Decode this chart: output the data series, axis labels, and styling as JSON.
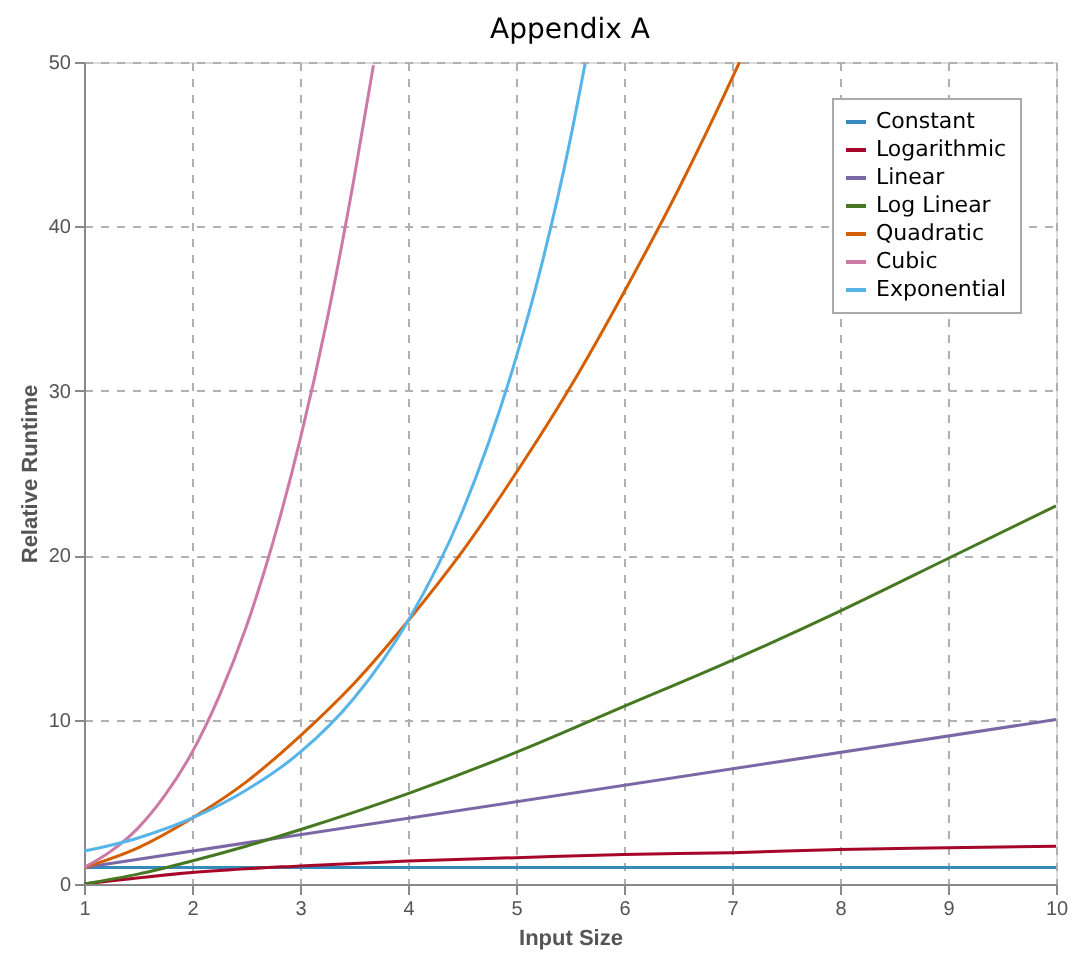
{
  "chart_data": {
    "type": "line",
    "title": "Appendix A",
    "xlabel": "Input Size",
    "ylabel": "Relative Runtime",
    "xlim": [
      1,
      10
    ],
    "ylim": [
      0,
      50
    ],
    "xticks": [
      1,
      2,
      3,
      4,
      5,
      6,
      7,
      8,
      9,
      10
    ],
    "yticks": [
      0,
      10,
      20,
      30,
      40,
      50
    ],
    "grid": true,
    "legend": "top right",
    "line_style": "solid",
    "marker": "none",
    "series": [
      {
        "name": "Constant",
        "color": "#348abd",
        "x": [
          1,
          10
        ],
        "values": [
          1,
          1
        ]
      },
      {
        "name": "Logarithmic",
        "color": "#a60628",
        "x": [
          1,
          2,
          3,
          4,
          5,
          6,
          7,
          8,
          9,
          10
        ],
        "values": [
          0,
          0.7,
          1.1,
          1.4,
          1.6,
          1.8,
          1.9,
          2.1,
          2.2,
          2.3
        ]
      },
      {
        "name": "Linear",
        "color": "#7a68a6",
        "x": [
          1,
          10
        ],
        "values": [
          1,
          10
        ]
      },
      {
        "name": "Log Linear",
        "color": "#467821",
        "x": [
          1,
          1.5,
          2,
          2.5,
          3,
          4,
          5,
          6,
          7,
          8,
          9,
          10
        ],
        "values": [
          0,
          0.6,
          1.4,
          2.3,
          3.3,
          5.5,
          8,
          10.8,
          13.6,
          16.6,
          19.8,
          23
        ]
      },
      {
        "name": "Quadratic",
        "color": "#d55e00",
        "x": [
          1,
          1.5,
          2,
          2.5,
          3,
          3.5,
          4,
          4.5,
          5,
          5.5,
          6,
          6.5,
          7,
          7.07
        ],
        "values": [
          1,
          2.2,
          4,
          6.2,
          9,
          12.2,
          16,
          20.2,
          25,
          30.2,
          36,
          42.2,
          49,
          50
        ]
      },
      {
        "name": "Cubic",
        "color": "#cc79a7",
        "x": [
          1,
          1.25,
          1.5,
          1.75,
          2,
          2.25,
          2.5,
          2.75,
          3,
          3.25,
          3.5,
          3.68
        ],
        "values": [
          1,
          2,
          3.4,
          5.4,
          8,
          11.4,
          15.6,
          20.8,
          27,
          34.3,
          42.9,
          49.8
        ]
      },
      {
        "name": "Exponential",
        "color": "#56b4e9",
        "x": [
          1,
          1.5,
          2,
          2.5,
          3,
          3.5,
          4,
          4.5,
          5,
          5.25,
          5.5,
          5.64
        ],
        "values": [
          2,
          2.8,
          4,
          5.7,
          8,
          11.3,
          16,
          22.6,
          32,
          38,
          45.2,
          49.9
        ]
      }
    ]
  }
}
